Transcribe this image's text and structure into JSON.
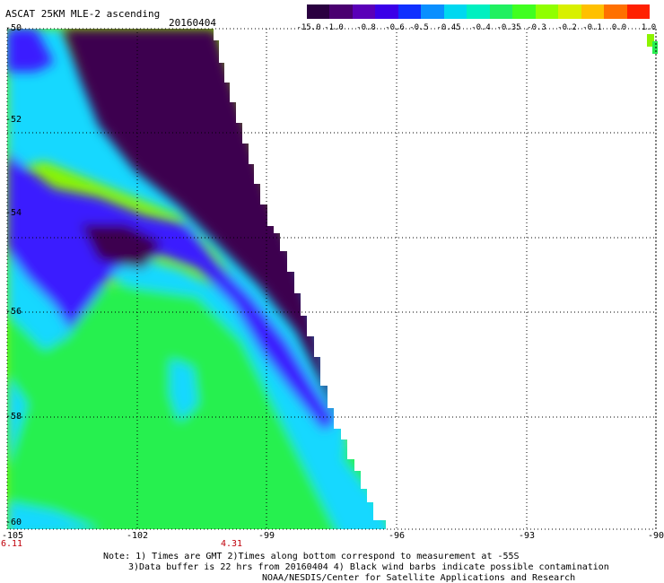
{
  "header": {
    "title": "ASCAT 25KM MLE-2 ascending",
    "date": "20160404"
  },
  "colorbar": {
    "labels": [
      "-15.0",
      "-1.0",
      "-0.8",
      "-0.6",
      "-0.5",
      "-0.45",
      "-0.4",
      "-0.35",
      "-0.3",
      "-0.2",
      "-0.1",
      "0.0",
      "1.0"
    ],
    "colors": [
      "#2a0040",
      "#4a0070",
      "#5a00b8",
      "#3a00e8",
      "#1030ff",
      "#0a8fff",
      "#00d8f0",
      "#00f0c0",
      "#20f060",
      "#40ff20",
      "#90ff00",
      "#d8f000",
      "#ffc000",
      "#ff7000",
      "#ff2000"
    ]
  },
  "map": {
    "y_axis_labels": [
      "-50",
      "-52",
      "-54",
      "-56",
      "-58",
      "-60"
    ],
    "x_axis_labels": [
      "-105",
      "-102",
      "-99",
      "-96",
      "-93",
      "-90"
    ],
    "time_labels": [
      "6.11",
      "4.31"
    ],
    "colors": {
      "purple": "#3d0050",
      "blue": "#3a1cff",
      "cyan": "#18d8ff",
      "green": "#28f050",
      "lime": "#8cf400",
      "time_text": "#c0000a"
    }
  },
  "footer": {
    "line1": "Note: 1) Times are GMT 2)Times along bottom correspond to measurement at -55S",
    "line2": "3)Data buffer is 22 hrs from 20160404 4) Black wind barbs indicate possible contamination",
    "line3": "NOAA/NESDIS/Center for Satellite Applications and Research"
  }
}
